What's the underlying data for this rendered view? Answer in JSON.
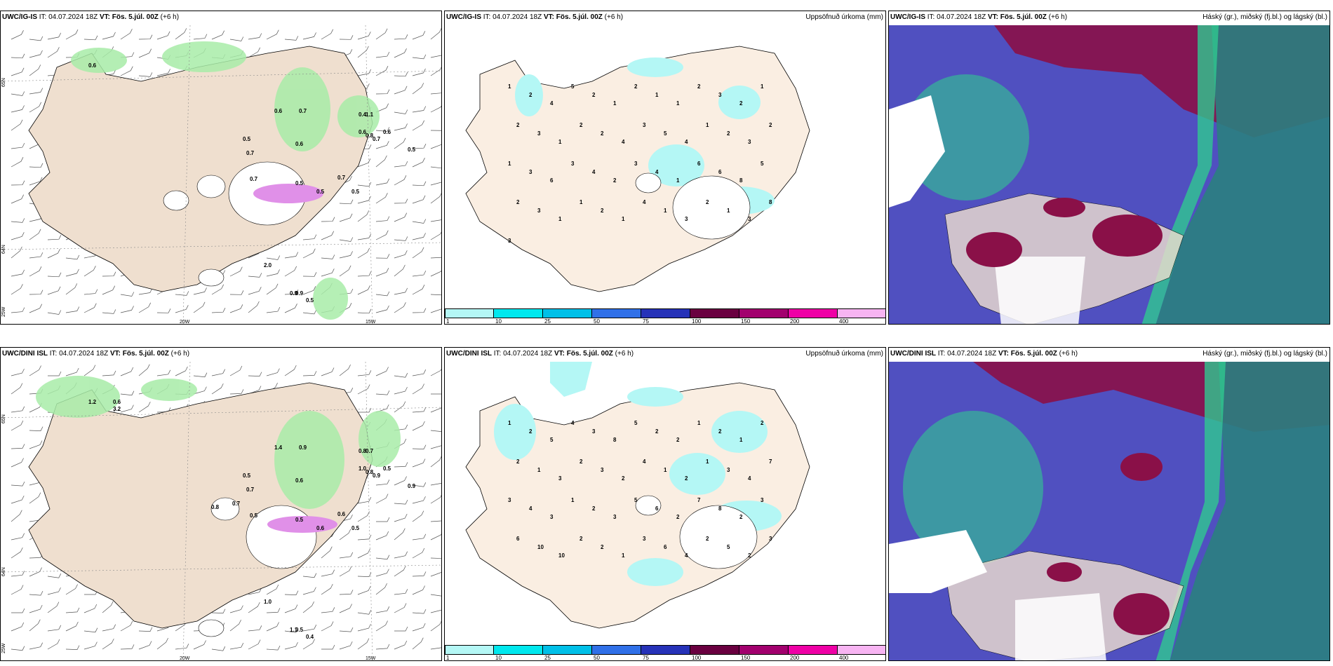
{
  "rows": [
    {
      "model": "UWC/IG-IS",
      "it_prefix": "IT:",
      "it": "04.07.2024 18Z",
      "vt_prefix": "VT:",
      "vt": "Fös. 5.júl. 00Z",
      "lead": "(+6 h)",
      "wind_labels": [
        "0.6",
        "0.6",
        "0.7",
        "0.5",
        "0.6",
        "0.7",
        "0.5",
        "0.6",
        "0.6",
        "0.7",
        "0.5",
        "0.8",
        "0.7",
        "0.4",
        "0.5",
        "0.7",
        "0.9",
        "0.5",
        "0.9",
        "2.0",
        "0.5",
        "1.1"
      ],
      "lat_labels": [
        "65N",
        "64N"
      ],
      "lon_labels": [
        "25W",
        "20W",
        "15W"
      ],
      "precip_labels": [
        "1",
        "2",
        "4",
        "5",
        "2",
        "1",
        "2",
        "1",
        "1",
        "2",
        "3",
        "2",
        "1",
        "2",
        "3",
        "1",
        "2",
        "2",
        "4",
        "3",
        "5",
        "4",
        "1",
        "2",
        "3",
        "2",
        "1",
        "3",
        "6",
        "3",
        "4",
        "2",
        "3",
        "4",
        "1",
        "6",
        "6",
        "8",
        "5",
        "2",
        "3",
        "1",
        "1",
        "2",
        "1",
        "4",
        "1",
        "3",
        "2",
        "1",
        "3",
        "8",
        "3"
      ]
    },
    {
      "model": "UWC/DINI ISL",
      "it_prefix": "IT:",
      "it": "04.07.2024 18Z",
      "vt_prefix": "VT:",
      "vt": "Fös. 5.júl. 00Z",
      "lead": "(+6 h)",
      "wind_labels": [
        "1.2",
        "1.4",
        "0.9",
        "0.5",
        "0.6",
        "0.5",
        "0.5",
        "1.0",
        "0.5",
        "0.7",
        "0.6",
        "0.8",
        "0.9",
        "0.8",
        "0.5",
        "0.6",
        "0.5",
        "0.4",
        "1.1",
        "1.0",
        "0.9",
        "0.7",
        "3.2",
        "0.7",
        "0.6",
        "0.8"
      ],
      "lat_labels": [
        "65N",
        "64N"
      ],
      "lon_labels": [
        "25W",
        "20W",
        "15W"
      ],
      "precip_labels": [
        "1",
        "2",
        "5",
        "4",
        "3",
        "8",
        "5",
        "2",
        "2",
        "1",
        "2",
        "1",
        "2",
        "2",
        "1",
        "3",
        "2",
        "3",
        "2",
        "4",
        "1",
        "2",
        "1",
        "3",
        "4",
        "7",
        "3",
        "4",
        "3",
        "1",
        "2",
        "3",
        "5",
        "6",
        "2",
        "7",
        "8",
        "2",
        "3",
        "6",
        "10",
        "10",
        "2",
        "2",
        "1",
        "3",
        "6",
        "4",
        "2",
        "5",
        "2",
        "3"
      ]
    }
  ],
  "precip_title": "Uppsöfnuð úrkoma (mm)",
  "cloud_title": "Háský (gr.), miðský (fj.bl.) og lágský (bl.)",
  "colorbar": {
    "ticks": [
      "1",
      "10",
      "25",
      "50",
      "75",
      "100",
      "150",
      "200",
      "400"
    ],
    "colors": [
      "#b4f7f5",
      "#00e8ee",
      "#00c0e8",
      "#3070e8",
      "#2632b8",
      "#6a0040",
      "#a2006e",
      "#ef00a6",
      "#f7b4f2"
    ]
  },
  "colors": {
    "land": "#efdfcf",
    "precip_land": "#faeee2",
    "cloud_high": "#8a1048",
    "cloud_mid": "#5050c0",
    "cloud_low": "#2a8080",
    "cloud_green": "#30c890",
    "rain_green": "#a8eca8",
    "snow_pink": "#e090e8"
  }
}
